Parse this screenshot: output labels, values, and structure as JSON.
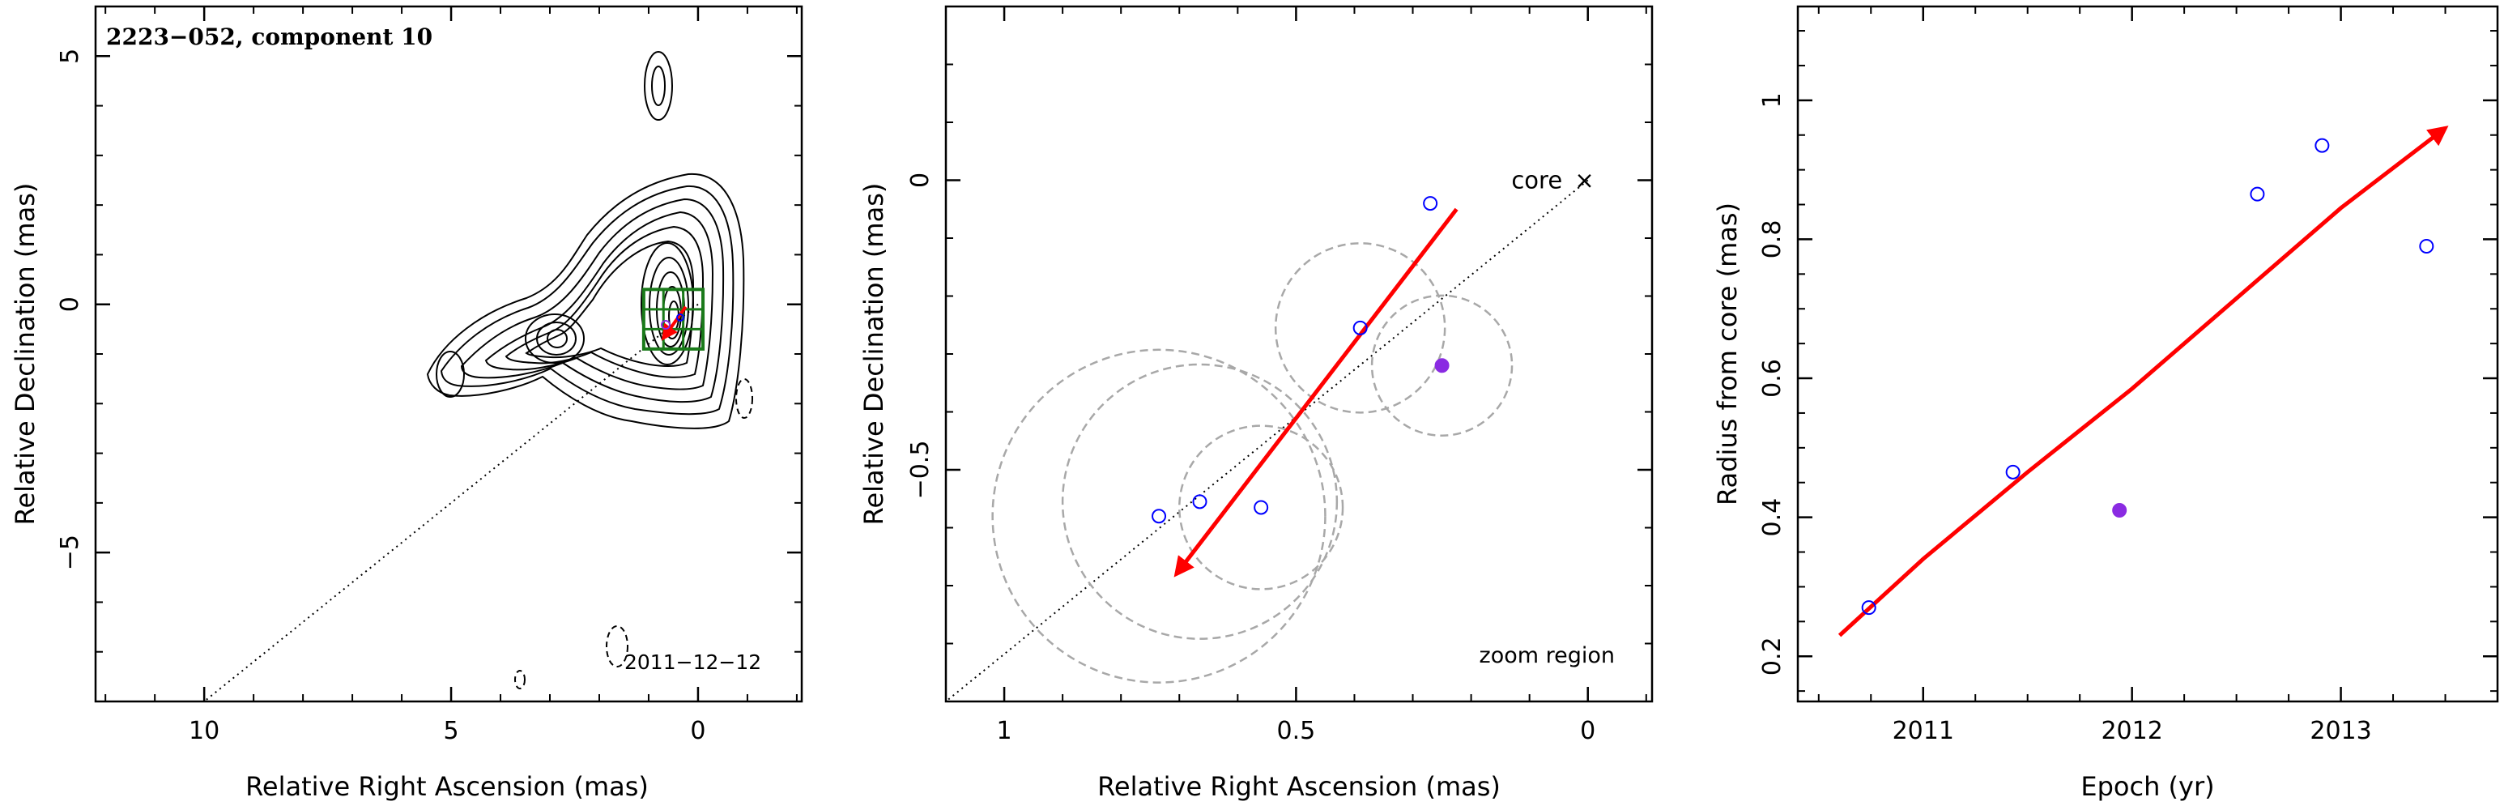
{
  "chart_data": [
    {
      "type": "contour-map",
      "title": "2223−052, component 10",
      "xlabel": "Relative Right Ascension (mas)",
      "ylabel": "Relative Declination (mas)",
      "xlim": [
        12.2,
        -2.1
      ],
      "ylim": [
        -8,
        6
      ],
      "xticks": [
        10,
        5,
        0
      ],
      "yticks": [
        5,
        0,
        -5
      ],
      "xtick_labels": [
        "10",
        "5",
        "0"
      ],
      "ytick_labels": [
        "5",
        "0",
        "−5"
      ],
      "date_label": "2011−12−12",
      "jet_direction_line": {
        "from": [
          0,
          0
        ],
        "to": [
          10,
          -8
        ]
      },
      "zoom_box": {
        "ra_range": [
          -0.1,
          1.1
        ],
        "dec_range": [
          -0.9,
          0.3
        ]
      },
      "arrow_color": "#ff0000",
      "box_color": "#1a7a1a"
    },
    {
      "type": "scatter",
      "xlabel": "Relative Right Ascension (mas)",
      "ylabel": "Relative Declination (mas)",
      "xlim": [
        1.1,
        -0.11
      ],
      "ylim": [
        -0.9,
        0.3
      ],
      "xticks": [
        1,
        0.5,
        0
      ],
      "yticks": [
        0,
        -0.5
      ],
      "xtick_labels": [
        "1",
        "0.5",
        "0"
      ],
      "ytick_labels": [
        "0",
        "−0.5"
      ],
      "core_label": "core",
      "core_marker": "×",
      "core_position": [
        0,
        0
      ],
      "zoom_label": "zoom region",
      "points": [
        {
          "ra": 0.27,
          "dec": -0.04,
          "filled": false
        },
        {
          "ra": 0.39,
          "dec": -0.255,
          "filled": false
        },
        {
          "ra": 0.25,
          "dec": -0.32,
          "filled": true
        },
        {
          "ra": 0.56,
          "dec": -0.565,
          "filled": false
        },
        {
          "ra": 0.665,
          "dec": -0.555,
          "filled": false
        },
        {
          "ra": 0.735,
          "dec": -0.58,
          "filled": false
        }
      ],
      "circles": [
        {
          "ra": 0.39,
          "dec": -0.255,
          "r": 0.145
        },
        {
          "ra": 0.25,
          "dec": -0.32,
          "r": 0.12
        },
        {
          "ra": 0.56,
          "dec": -0.565,
          "r": 0.14
        },
        {
          "ra": 0.665,
          "dec": -0.555,
          "r": 0.235
        },
        {
          "ra": 0.735,
          "dec": -0.58,
          "r": 0.285
        }
      ],
      "arrow": {
        "from": [
          0.225,
          -0.05
        ],
        "to": [
          0.705,
          -0.68
        ]
      },
      "line_from": [
        0,
        0
      ],
      "line_to": [
        1.1,
        -0.9
      ],
      "open_color": "#0000ff",
      "filled_color": "#8a2be2",
      "arrow_color": "#ff0000",
      "circle_color": "#a8a8a8"
    },
    {
      "type": "scatter",
      "xlabel": "Epoch (yr)",
      "ylabel": "Radius from core (mas)",
      "xlim": [
        2010.4,
        2013.75
      ],
      "ylim": [
        0.135,
        1.135
      ],
      "xticks": [
        2011,
        2012,
        2013
      ],
      "yticks": [
        0.2,
        0.4,
        0.6,
        0.8,
        1.0
      ],
      "xtick_labels": [
        "2011",
        "2012",
        "2013"
      ],
      "ytick_labels": [
        "0.2",
        "0.4",
        "0.6",
        "0.8",
        "1"
      ],
      "points": [
        {
          "x": 2010.74,
          "y": 0.27,
          "filled": false
        },
        {
          "x": 2011.43,
          "y": 0.465,
          "filled": false
        },
        {
          "x": 2011.94,
          "y": 0.41,
          "filled": true
        },
        {
          "x": 2012.6,
          "y": 0.865,
          "filled": false
        },
        {
          "x": 2012.91,
          "y": 0.935,
          "filled": false
        },
        {
          "x": 2013.41,
          "y": 0.79,
          "filled": false
        }
      ],
      "fit_curve": [
        {
          "x": 2010.6,
          "y": 0.23
        },
        {
          "x": 2011.0,
          "y": 0.34
        },
        {
          "x": 2011.5,
          "y": 0.465
        },
        {
          "x": 2012.0,
          "y": 0.585
        },
        {
          "x": 2012.5,
          "y": 0.715
        },
        {
          "x": 2013.0,
          "y": 0.845
        },
        {
          "x": 2013.5,
          "y": 0.96
        }
      ],
      "open_color": "#0000ff",
      "filled_color": "#8a2be2",
      "arrow_color": "#ff0000"
    }
  ]
}
